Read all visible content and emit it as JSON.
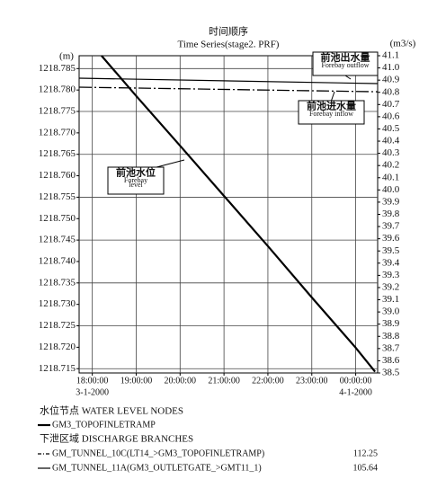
{
  "chart_data": {
    "type": "line",
    "title": "时间顺序",
    "subtitle": "Time Series(stage2. PRF)",
    "y_label": "(m)",
    "y2_label": "(m3/s)",
    "xlim": [
      17.7,
      24.5
    ],
    "xticks": [
      {
        "value": 18,
        "label": "18:00:00"
      },
      {
        "value": 19,
        "label": "19:00:00"
      },
      {
        "value": 20,
        "label": "20:00:00"
      },
      {
        "value": 21,
        "label": "21:00:00"
      },
      {
        "value": 22,
        "label": "22:00:00"
      },
      {
        "value": 23,
        "label": "23:00:00"
      },
      {
        "value": 24,
        "label": "00:00:00"
      }
    ],
    "x_date_labels": [
      {
        "value": 18,
        "label": "3-1-2000"
      },
      {
        "value": 24,
        "label": "4-1-2000"
      }
    ],
    "ylim": [
      1218.714,
      1218.788
    ],
    "yticks": [
      1218.785,
      {
        "value": 1218.78,
        "label": "1218.780"
      },
      1218.775,
      {
        "value": 1218.77,
        "label": "1218.770"
      },
      1218.765,
      {
        "value": 1218.76,
        "label": "1218.760"
      },
      1218.755,
      {
        "value": 1218.75,
        "label": "1218.750"
      },
      1218.745,
      {
        "value": 1218.74,
        "label": "1218.740"
      },
      1218.735,
      {
        "value": 1218.73,
        "label": "1218.730"
      },
      1218.725,
      {
        "value": 1218.72,
        "label": "1218.720"
      },
      1218.715
    ],
    "y2lim": [
      38.5,
      41.1
    ],
    "y2ticks": [
      41.1,
      {
        "value": 41,
        "label": "41.0"
      },
      40.9,
      40.8,
      40.7,
      40.6,
      40.5,
      40.4,
      40.3,
      40.2,
      40.1,
      {
        "value": 40,
        "label": "40.0"
      },
      39.9,
      39.8,
      39.7,
      39.6,
      39.5,
      39.4,
      39.3,
      39.2,
      39.1,
      {
        "value": 39,
        "label": "39.0"
      },
      38.9,
      38.8,
      38.7,
      38.6,
      38.5
    ],
    "grid": true,
    "legend_groups": [
      "水位节点 WATER LEVEL NODES",
      "下泄区域 DISCHARGE BRANCHES"
    ],
    "series": [
      {
        "name": "GM3_TOPOFINLETRAMP",
        "axis": "y",
        "style": "thick",
        "color": "#000000",
        "x": [
          18.21,
          19,
          20,
          21,
          22,
          23,
          24,
          24.44
        ],
        "values": [
          1218.788,
          1218.7786,
          1218.767,
          1218.7553,
          1218.7436,
          1218.7316,
          1218.7199,
          1218.7143
        ]
      },
      {
        "name": "GM_TUNNEL_10C(LT14_>GM3_TOPOFINLETRAMP)",
        "legend_value": 112.25,
        "axis": "y2",
        "style": "dash-dot",
        "color": "#000000",
        "x": [
          17.7,
          24.5
        ],
        "values": [
          40.842,
          40.805
        ]
      },
      {
        "name": "GM_TUNNEL_11A(GM3_OUTLETGATE_>GMT11_1)",
        "legend_value": 105.64,
        "axis": "y2",
        "style": "solid",
        "color": "#000000",
        "x": [
          17.7,
          24.5
        ],
        "values": [
          40.916,
          40.872
        ]
      }
    ],
    "annotations": [
      {
        "lines": [
          "前池出水量",
          "Forebay outflow"
        ]
      },
      {
        "lines": [
          "前池进水量",
          "Forebay inflow"
        ]
      },
      {
        "lines": [
          "前池水位",
          "Forebay",
          "level"
        ]
      }
    ]
  }
}
